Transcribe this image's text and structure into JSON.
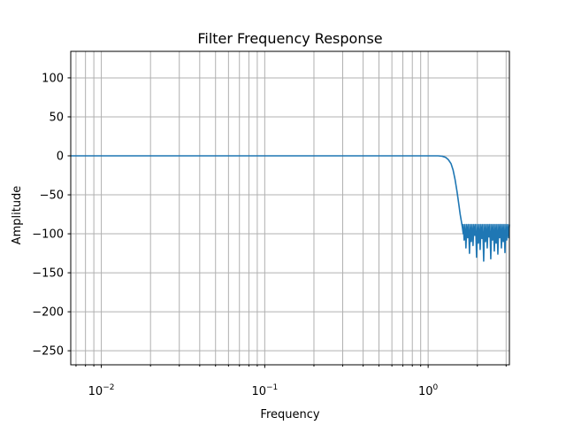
{
  "chart_data": {
    "type": "line",
    "title": "Filter Frequency Response",
    "xlabel": "Frequency",
    "ylabel": "Amplitude",
    "xscale": "log",
    "xlim": [
      0.0065,
      3.14159
    ],
    "ylim": [
      -268,
      134
    ],
    "grid": true,
    "grid_minor_x": true,
    "line_color": "#1f77b4",
    "grid_color": "#b0b0b0",
    "x_major_ticks": [
      {
        "value": 0.01,
        "base": "10",
        "exp": "−2"
      },
      {
        "value": 0.1,
        "base": "10",
        "exp": "−1"
      },
      {
        "value": 1,
        "base": "10",
        "exp": "0"
      }
    ],
    "y_ticks": [
      {
        "value": 100,
        "label": "100"
      },
      {
        "value": 50,
        "label": "50"
      },
      {
        "value": 0,
        "label": "0"
      },
      {
        "value": -50,
        "label": "−50"
      },
      {
        "value": -100,
        "label": "−100"
      },
      {
        "value": -150,
        "label": "−150"
      },
      {
        "value": -200,
        "label": "−200"
      },
      {
        "value": -250,
        "label": "−250"
      }
    ],
    "series": [
      {
        "x": [
          0.0065,
          0.01,
          0.1,
          0.5,
          1.0,
          1.15,
          1.22,
          1.28,
          1.33,
          1.38,
          1.42,
          1.46,
          1.5,
          1.54,
          1.57,
          1.6,
          1.62,
          1.64
        ],
        "y": [
          0,
          0,
          0,
          0,
          0,
          0,
          -0.5,
          -2,
          -5,
          -10,
          -18,
          -30,
          -45,
          -62,
          -75,
          -85,
          -92,
          -100
        ]
      }
    ],
    "stopband": {
      "x_start": 1.64,
      "x_end": 3.14159,
      "lobes": 26,
      "peak_db": -88,
      "null_db": [
        -108,
        -118,
        -105,
        -125,
        -110,
        -115,
        -102,
        -130,
        -112,
        -120,
        -106,
        -135,
        -110,
        -118,
        -104,
        -132,
        -108,
        -122,
        -112,
        -126,
        -105,
        -118,
        -110,
        -124,
        -108,
        -105
      ]
    }
  }
}
